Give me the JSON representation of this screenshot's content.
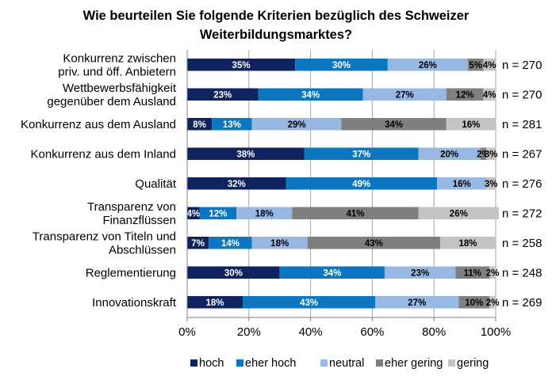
{
  "chart_data": {
    "type": "bar",
    "orientation": "horizontal",
    "stacked": true,
    "title_lines": [
      "Wie beurteilen Sie folgende Kriterien bezüglich des Schweizer",
      "Weiterbildungsmarktes?"
    ],
    "categories": [
      {
        "lines": [
          "Konkurrenz zwischen",
          "priv. und öff. Anbietern"
        ],
        "n": "n = 270"
      },
      {
        "lines": [
          "Wettbewerbsfähigkeit",
          "gegenüber dem Ausland"
        ],
        "n": "n = 270"
      },
      {
        "lines": [
          "Konkurrenz aus dem Ausland"
        ],
        "n": "n = 281"
      },
      {
        "lines": [
          "Konkurrenz aus dem Inland"
        ],
        "n": "n = 267"
      },
      {
        "lines": [
          "Qualität"
        ],
        "n": "n = 276"
      },
      {
        "lines": [
          "Transparenz von",
          "Finanzflüssen"
        ],
        "n": "n = 272"
      },
      {
        "lines": [
          "Transparenz von Titeln und",
          "Abschlüssen"
        ],
        "n": "n = 258"
      },
      {
        "lines": [
          "Reglementierung"
        ],
        "n": "n = 248"
      },
      {
        "lines": [
          "Innovationskraft"
        ],
        "n": "n = 269"
      }
    ],
    "series": [
      {
        "name": "hoch",
        "color": "#0f2360",
        "labelColor": "#ffffff",
        "values": [
          35,
          23,
          8,
          38,
          32,
          4,
          7,
          30,
          18
        ],
        "labels": [
          "35%",
          "23%",
          "8%",
          "38%",
          "32%",
          "4%",
          "7%",
          "30%",
          "18%"
        ]
      },
      {
        "name": "eher hoch",
        "color": "#0b77c3",
        "labelColor": "#ffffff",
        "values": [
          30,
          34,
          13,
          37,
          49,
          12,
          14,
          34,
          43
        ],
        "labels": [
          "30%",
          "34%",
          "13%",
          "37%",
          "49%",
          "12%",
          "14%",
          "34%",
          "43%"
        ]
      },
      {
        "name": "neutral",
        "color": "#98b8e4",
        "labelColor": "#000000",
        "values": [
          26,
          27,
          29,
          20,
          16,
          18,
          18,
          23,
          27
        ],
        "labels": [
          "26%",
          "27%",
          "29%",
          "20%",
          "16%",
          "18%",
          "18%",
          "23%",
          "27%"
        ]
      },
      {
        "name": "eher gering",
        "color": "#7f7f7f",
        "labelColor": "#000000",
        "values": [
          5,
          12,
          34,
          2,
          0,
          41,
          43,
          11,
          10
        ],
        "labels": [
          "5%",
          "12%",
          "34%",
          "2%",
          "",
          "41%",
          "43%",
          "11%",
          "10%"
        ]
      },
      {
        "name": "gering",
        "color": "#c4c4c4",
        "labelColor": "#000000",
        "values": [
          4,
          4,
          16,
          3,
          3,
          26,
          18,
          2,
          2
        ],
        "labels": [
          "4%",
          "4%",
          "16%",
          "3%",
          "3%",
          "26%",
          "18%",
          "2%",
          "2%"
        ]
      }
    ],
    "xlim": [
      0,
      100
    ],
    "xticks": [
      "0%",
      "20%",
      "40%",
      "60%",
      "80%",
      "100%"
    ],
    "grid": true,
    "legend": "bottom"
  }
}
